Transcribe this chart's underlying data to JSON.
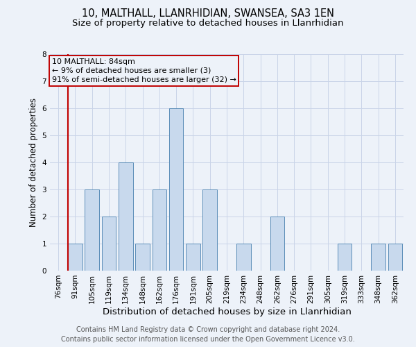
{
  "title": "10, MALTHALL, LLANRHIDIAN, SWANSEA, SA3 1EN",
  "subtitle": "Size of property relative to detached houses in Llanrhidian",
  "xlabel": "Distribution of detached houses by size in Llanrhidian",
  "ylabel": "Number of detached properties",
  "categories": [
    "76sqm",
    "91sqm",
    "105sqm",
    "119sqm",
    "134sqm",
    "148sqm",
    "162sqm",
    "176sqm",
    "191sqm",
    "205sqm",
    "219sqm",
    "234sqm",
    "248sqm",
    "262sqm",
    "276sqm",
    "291sqm",
    "305sqm",
    "319sqm",
    "333sqm",
    "348sqm",
    "362sqm"
  ],
  "values": [
    0,
    1,
    3,
    2,
    4,
    1,
    3,
    6,
    1,
    3,
    0,
    1,
    0,
    2,
    0,
    0,
    0,
    1,
    0,
    1,
    1
  ],
  "bar_color": "#c8d9ed",
  "bar_edge_color": "#5b8db8",
  "highlight_bar_index": 1,
  "red_line_color": "#c00000",
  "annotation_line1": "10 MALTHALL: 84sqm",
  "annotation_line2": "← 9% of detached houses are smaller (3)",
  "annotation_line3": "91% of semi-detached houses are larger (32) →",
  "ylim": [
    0,
    8
  ],
  "yticks": [
    0,
    1,
    2,
    3,
    4,
    5,
    6,
    7,
    8
  ],
  "grid_color": "#c9d4e8",
  "background_color": "#edf2f9",
  "footer_line1": "Contains HM Land Registry data © Crown copyright and database right 2024.",
  "footer_line2": "Contains public sector information licensed under the Open Government Licence v3.0.",
  "title_fontsize": 10.5,
  "subtitle_fontsize": 9.5,
  "xlabel_fontsize": 9.5,
  "ylabel_fontsize": 8.5,
  "tick_fontsize": 7.5,
  "annotation_fontsize": 8,
  "footer_fontsize": 7
}
